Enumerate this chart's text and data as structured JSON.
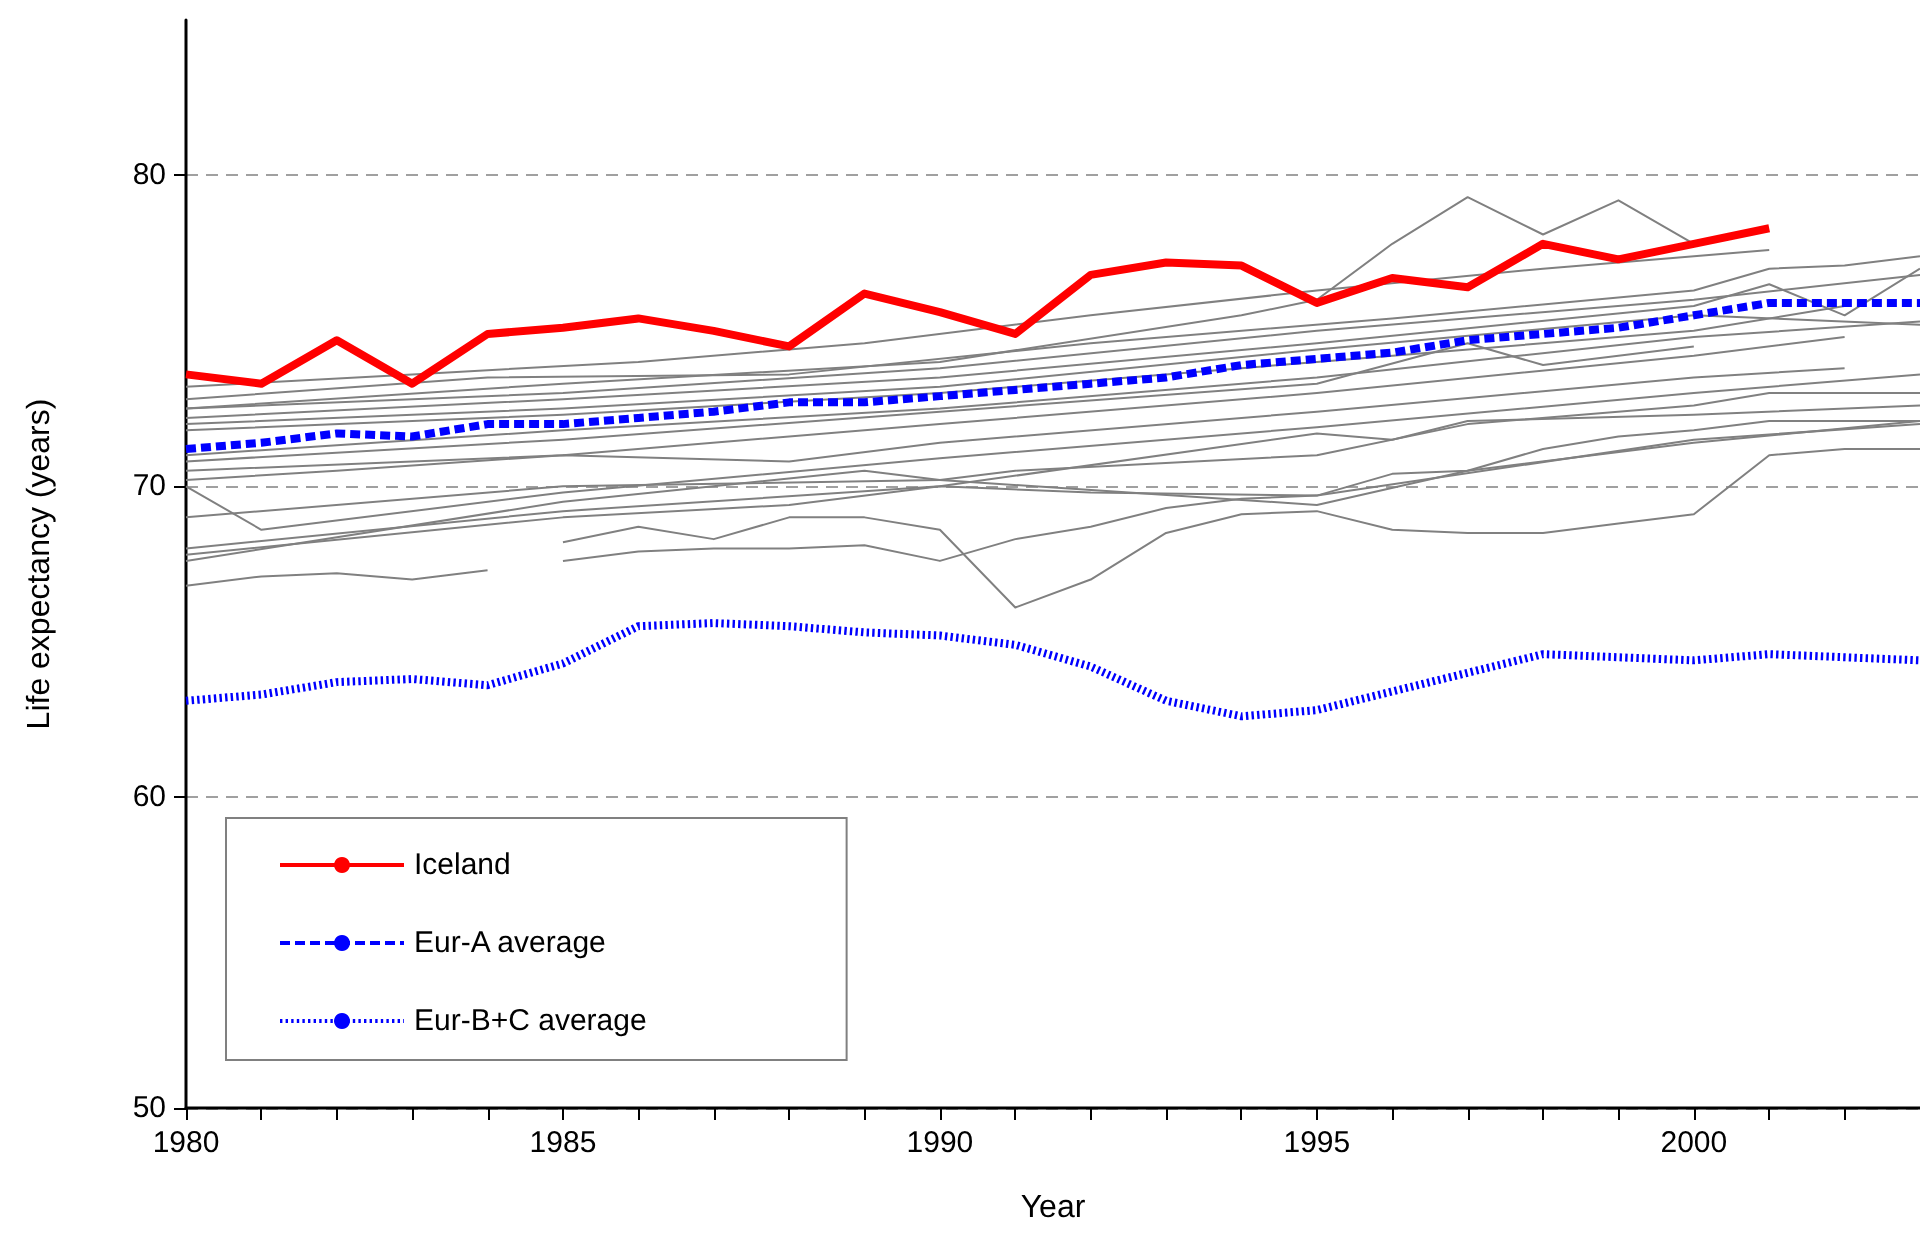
{
  "chart_data": {
    "type": "line",
    "xlabel": "Year",
    "ylabel": "Life expectancy (years)",
    "xlim": [
      1980,
      2003
    ],
    "ylim": [
      50,
      85
    ],
    "xticks": [
      1980,
      {
        "value": 1981,
        "label": null
      },
      {
        "value": 1982,
        "label": null
      },
      {
        "value": 1983,
        "label": null
      },
      {
        "value": 1984,
        "label": null
      },
      1985,
      {
        "value": 1986,
        "label": null
      },
      {
        "value": 1987,
        "label": null
      },
      {
        "value": 1988,
        "label": null
      },
      {
        "value": 1989,
        "label": null
      },
      1990,
      {
        "value": 1991,
        "label": null
      },
      {
        "value": 1992,
        "label": null
      },
      {
        "value": 1993,
        "label": null
      },
      {
        "value": 1994,
        "label": null
      },
      1995,
      {
        "value": 1996,
        "label": null
      },
      {
        "value": 1997,
        "label": null
      },
      {
        "value": 1998,
        "label": null
      },
      {
        "value": 1999,
        "label": null
      },
      2000,
      {
        "value": 2001,
        "label": null
      },
      {
        "value": 2002,
        "label": null
      }
    ],
    "yticks": [
      50,
      60,
      70,
      80
    ],
    "grid": "y",
    "legend": "bottom left",
    "marker": "none",
    "series": [
      {
        "color": "#808080",
        "x": [
          1980,
          1983,
          1986,
          1989,
          1992,
          1995,
          1998,
          2001
        ],
        "values": [
          73.2,
          73.6,
          74.0,
          74.6,
          75.5,
          76.3,
          77.0,
          77.6
        ]
      },
      {
        "color": "#808080",
        "x": [
          1980,
          1984,
          1988,
          1992,
          1996,
          2000,
          2001,
          2002,
          2003
        ],
        "values": [
          72.8,
          73.5,
          73.6,
          74.6,
          75.4,
          76.3,
          77.0,
          77.1,
          77.4
        ]
      },
      {
        "color": "#808080",
        "x": [
          1980,
          1985,
          1990,
          1994,
          1995,
          1996,
          1997,
          1998,
          1999,
          2000
        ],
        "values": [
          72.5,
          73.3,
          74.0,
          75.5,
          76.0,
          77.8,
          79.3,
          78.1,
          79.2,
          77.8
        ]
      },
      {
        "color": "#808080",
        "x": [
          1980,
          1985,
          1990,
          1995,
          2000,
          2003
        ],
        "values": [
          72.5,
          73.0,
          73.8,
          75.0,
          76.0,
          76.8
        ]
      },
      {
        "color": "#808080",
        "x": [
          1980,
          1985,
          1990,
          1995,
          2000,
          2001,
          2002,
          2003
        ],
        "values": [
          72.2,
          72.8,
          73.5,
          74.6,
          75.8,
          76.5,
          75.5,
          77.0
        ]
      },
      {
        "color": "#808080",
        "x": [
          1980,
          1985,
          1990,
          1995,
          2000,
          2003
        ],
        "values": [
          72.0,
          72.5,
          73.2,
          74.4,
          75.5,
          75.2
        ]
      },
      {
        "color": "#808080",
        "x": [
          1980,
          1985,
          1990,
          1995,
          2000,
          2002
        ],
        "values": [
          71.8,
          72.3,
          73.0,
          74.0,
          75.0,
          75.8
        ]
      },
      {
        "color": "#808080",
        "x": [
          1980,
          1985,
          1990,
          1995,
          2000,
          2003
        ],
        "values": [
          71.0,
          71.8,
          72.5,
          73.5,
          74.8,
          75.3
        ]
      },
      {
        "color": "#808080",
        "x": [
          1980,
          1985,
          1990,
          1995,
          1997,
          1998,
          2000
        ],
        "values": [
          70.8,
          71.5,
          72.4,
          73.3,
          74.6,
          73.9,
          74.5
        ]
      },
      {
        "color": "#808080",
        "x": [
          1980,
          1985,
          1990,
          1995,
          2000,
          2002
        ],
        "values": [
          70.5,
          71.0,
          72.0,
          73.0,
          74.2,
          74.8
        ]
      },
      {
        "color": "#808080",
        "x": [
          1980,
          1982,
          1985,
          1988,
          1990,
          1995,
          2000,
          2002
        ],
        "values": [
          70.2,
          70.5,
          71.0,
          70.8,
          71.4,
          72.4,
          73.5,
          73.8
        ]
      },
      {
        "color": "#808080",
        "x": [
          1980,
          1981,
          1985,
          1990,
          1995,
          2000,
          2003
        ],
        "values": [
          70.0,
          68.6,
          69.8,
          70.9,
          71.9,
          73.0,
          73.6
        ]
      },
      {
        "color": "#808080",
        "x": [
          1980,
          1985,
          1990,
          1991,
          1995,
          1997,
          2000,
          2001,
          2003
        ],
        "values": [
          69.0,
          70.0,
          70.2,
          70.5,
          71.0,
          72.0,
          72.6,
          73.0,
          73.0
        ]
      },
      {
        "color": "#808080",
        "x": [
          1980,
          1985,
          1990,
          1995,
          1996,
          1997,
          2000,
          2003
        ],
        "values": [
          68.0,
          69.2,
          70.0,
          71.7,
          71.5,
          72.1,
          72.3,
          72.6
        ]
      },
      {
        "color": "#808080",
        "x": [
          1980,
          1985,
          1989,
          1990,
          1995,
          1997,
          2000,
          2003
        ],
        "values": [
          67.6,
          69.5,
          70.5,
          70.2,
          69.4,
          70.5,
          71.4,
          72.1
        ]
      },
      {
        "color": "#808080",
        "x": [
          1980,
          1985,
          1988,
          1990,
          1992,
          1995,
          2000,
          2003
        ],
        "values": [
          67.8,
          69.0,
          69.4,
          70.0,
          69.8,
          69.7,
          71.5,
          72.0
        ]
      },
      {
        "color": "#808080",
        "x": [
          1985,
          1986,
          1987,
          1988,
          1989,
          1990,
          1991,
          1992,
          1993,
          1994,
          1995,
          1996,
          1997,
          1998,
          1999,
          2000,
          2001,
          2002,
          2003
        ],
        "values": [
          68.2,
          68.7,
          68.3,
          69.0,
          69.0,
          68.6,
          66.1,
          67.0,
          68.5,
          69.1,
          69.2,
          68.6,
          68.5,
          68.5,
          68.8,
          69.1,
          71.0,
          71.2,
          71.2
        ]
      },
      {
        "color": "#808080",
        "x": [
          1980,
          1981,
          1982,
          1983,
          1984,
          1984.5,
          1985,
          1986,
          1987,
          1988,
          1989,
          1990,
          1991,
          1992,
          1993,
          1994,
          1995,
          1996,
          1997,
          1998,
          1999,
          2000,
          2001,
          2002,
          2003
        ],
        "values": [
          66.8,
          67.1,
          67.2,
          67.0,
          67.3,
          null,
          67.6,
          67.9,
          68.0,
          68.0,
          68.1,
          67.6,
          68.3,
          68.7,
          69.3,
          69.6,
          69.7,
          70.4,
          70.5,
          71.2,
          71.6,
          71.8,
          72.1,
          72.1,
          72.1
        ]
      },
      {
        "name": "Iceland",
        "color": "#ff0000",
        "line_style": "solid",
        "x": [
          1980,
          1981,
          1982,
          1983,
          1984,
          1985,
          1986,
          1987,
          1988,
          1989,
          1990,
          1991,
          1992,
          1993,
          1994,
          1995,
          1996,
          1997,
          1998,
          1999,
          2000,
          2001
        ],
        "values": [
          73.6,
          73.3,
          74.7,
          73.3,
          74.9,
          75.1,
          75.4,
          75.0,
          74.5,
          76.2,
          75.6,
          74.9,
          76.8,
          77.2,
          77.1,
          75.9,
          76.7,
          76.4,
          77.8,
          77.3,
          77.8,
          78.3
        ]
      },
      {
        "name": "Eur-A average",
        "color": "#0000ff",
        "line_style": "dashed",
        "x": [
          1980,
          1981,
          1982,
          1983,
          1984,
          1985,
          1986,
          1987,
          1988,
          1989,
          1990,
          1991,
          1992,
          1993,
          1994,
          1995,
          1996,
          1997,
          1998,
          1999,
          2000,
          2001,
          2002,
          2003
        ],
        "values": [
          71.2,
          71.4,
          71.7,
          71.6,
          72.0,
          72.0,
          72.2,
          72.4,
          72.7,
          72.7,
          72.9,
          73.1,
          73.3,
          73.5,
          73.9,
          74.1,
          74.3,
          74.7,
          74.9,
          75.1,
          75.5,
          75.9,
          75.9,
          75.9
        ]
      },
      {
        "name": "Eur-B+C average",
        "color": "#0000ff",
        "line_style": "dotted",
        "x": [
          1980,
          1981,
          1982,
          1983,
          1984,
          1985,
          1986,
          1987,
          1988,
          1989,
          1990,
          1991,
          1992,
          1993,
          1994,
          1995,
          1996,
          1997,
          1998,
          1999,
          2000,
          2001,
          2002,
          2003
        ],
        "values": [
          63.1,
          63.3,
          63.7,
          63.8,
          63.6,
          64.3,
          65.5,
          65.6,
          65.5,
          65.3,
          65.2,
          64.9,
          64.2,
          63.1,
          62.6,
          62.8,
          63.4,
          64.0,
          64.6,
          64.5,
          64.4,
          64.6,
          64.5,
          64.4
        ]
      }
    ]
  }
}
